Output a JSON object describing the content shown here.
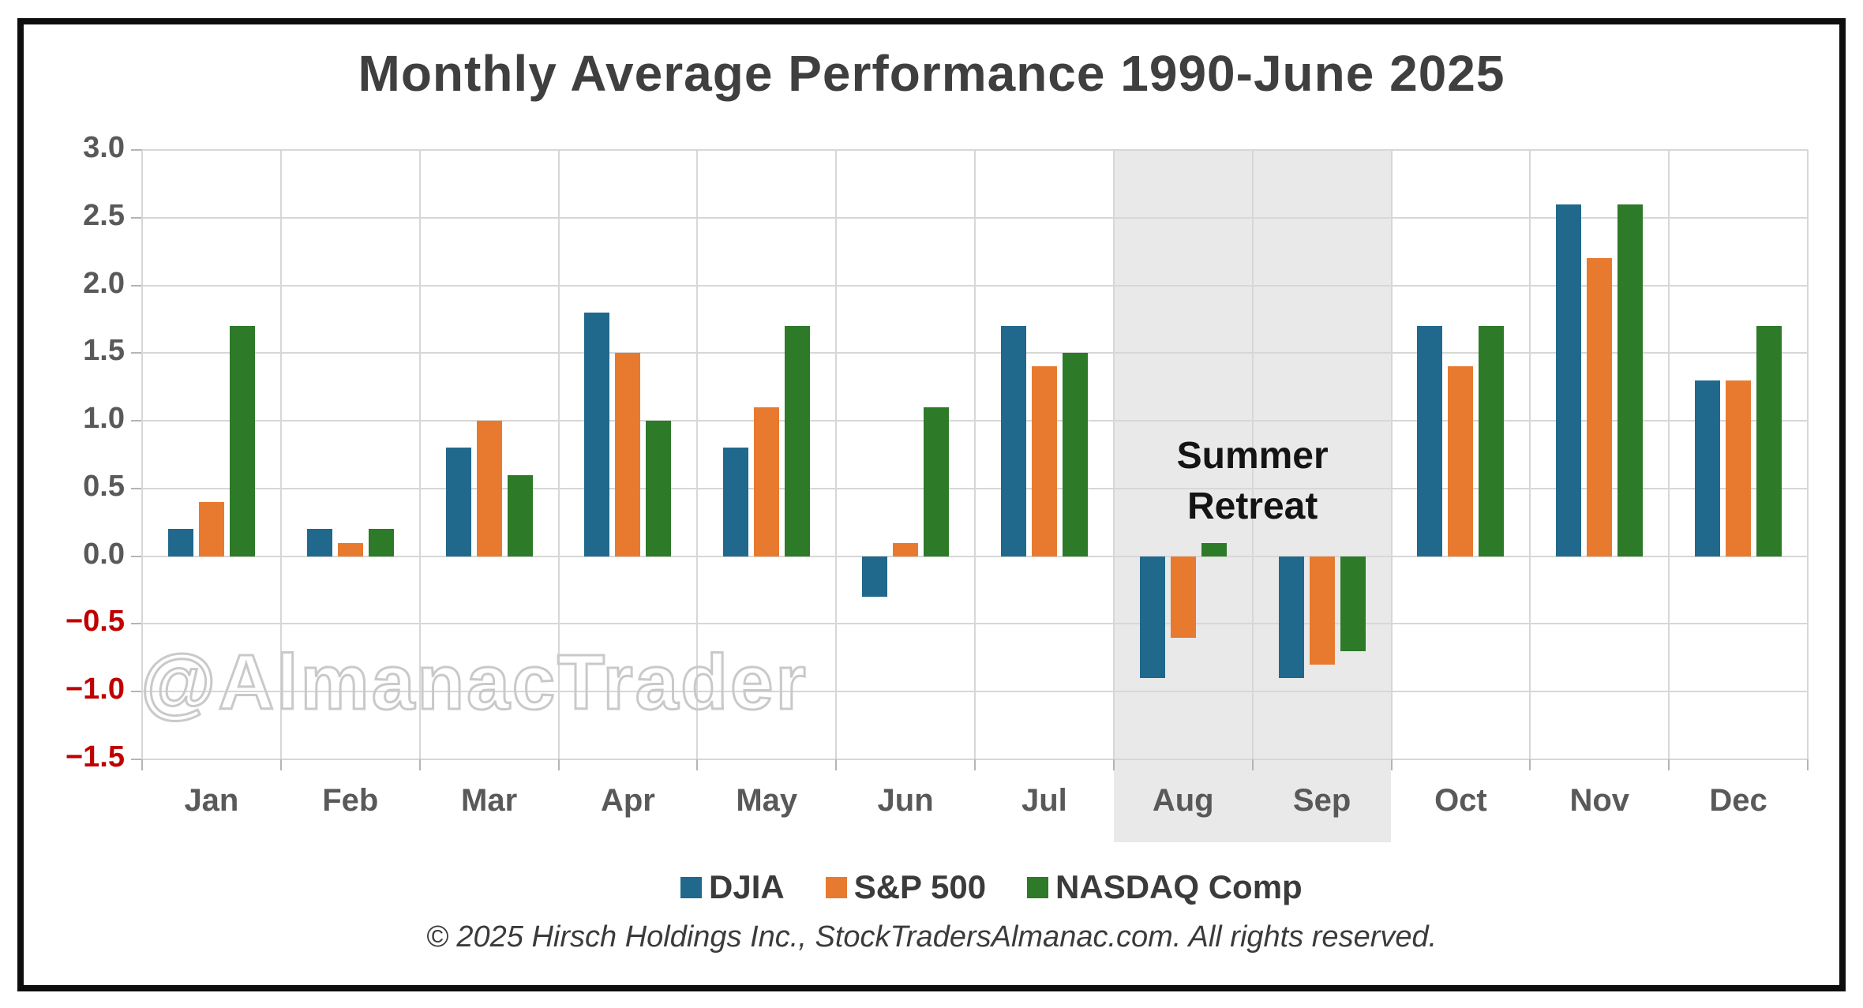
{
  "header": {
    "title": "Monthly Average Performance 1990-June 2025"
  },
  "chart_data": {
    "type": "bar",
    "title": "Monthly Average Performance 1990-June 2025",
    "categories": [
      "Jan",
      "Feb",
      "Mar",
      "Apr",
      "May",
      "Jun",
      "Jul",
      "Aug",
      "Sep",
      "Oct",
      "Nov",
      "Dec"
    ],
    "series": [
      {
        "name": "DJIA",
        "color": "#20698c",
        "values": [
          0.2,
          0.2,
          0.8,
          1.8,
          0.8,
          -0.3,
          1.7,
          -0.9,
          -0.9,
          1.7,
          2.6,
          1.3
        ]
      },
      {
        "name": "S&P 500",
        "color": "#e87a2f",
        "values": [
          0.4,
          0.1,
          1.0,
          1.5,
          1.1,
          0.1,
          1.4,
          -0.6,
          -0.8,
          1.4,
          2.2,
          1.3
        ]
      },
      {
        "name": "NASDAQ Comp",
        "color": "#2d7a28",
        "values": [
          1.7,
          0.2,
          0.6,
          1.0,
          1.7,
          1.1,
          1.5,
          0.1,
          -0.7,
          1.7,
          2.6,
          1.7
        ]
      }
    ],
    "xlabel": "",
    "ylabel": "",
    "ylim": [
      -1.5,
      3.0
    ],
    "ytick_step": 0.5,
    "yticks": [
      "3.0",
      "2.5",
      "2.0",
      "1.5",
      "1.0",
      "0.5",
      "0.0",
      "−0.5",
      "−1.0",
      "−1.5"
    ],
    "ytick_values": [
      3.0,
      2.5,
      2.0,
      1.5,
      1.0,
      0.5,
      0.0,
      -0.5,
      -1.0,
      -1.5
    ],
    "grid": true,
    "legend_position": "bottom",
    "shaded_region": {
      "from": "Aug",
      "to": "Sep",
      "color": "#e9e9e9",
      "label": "Summer\nRetreat"
    },
    "watermark": "@AlmanacTrader"
  },
  "colors": {
    "grid": "#d7d7d7",
    "axis_label": "#595959",
    "negative_tick": "#c00000",
    "title": "#3f3f3f",
    "frame_border": "#0e0e0e",
    "band": "#e9e9e9"
  },
  "footer": {
    "copyright": "© 2025 Hirsch Holdings Inc., StockTradersAlmanac.com. All rights reserved."
  }
}
